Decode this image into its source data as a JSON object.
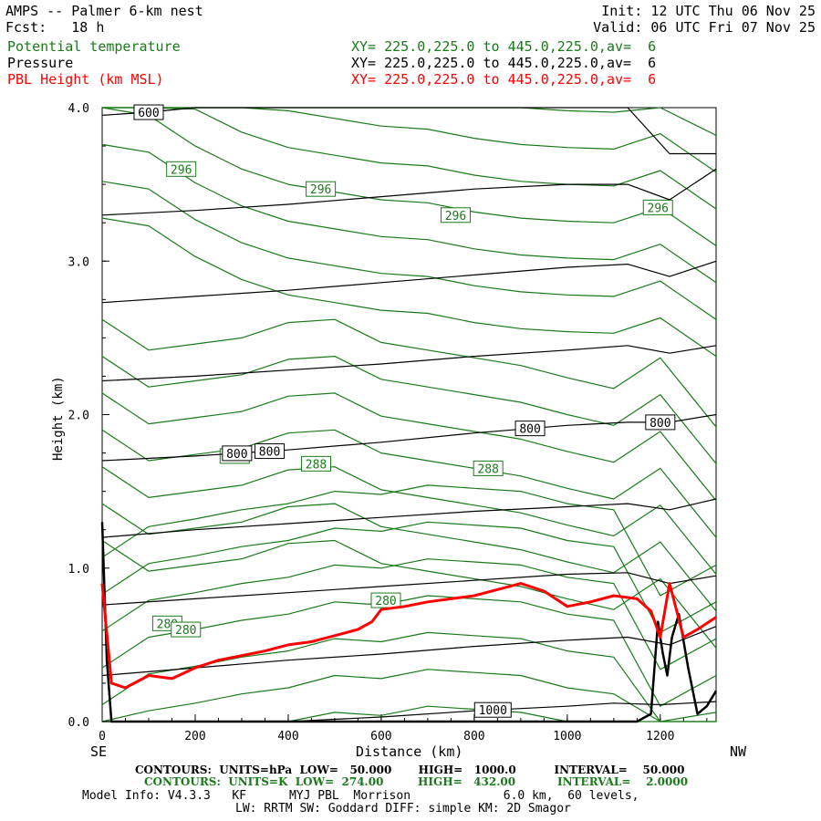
{
  "header": {
    "title": "AMPS -- Palmer 6-km nest",
    "fcst": "Fcst:   18 h",
    "init": "Init: 12 UTC Thu 06 Nov 25",
    "valid": "Valid: 06 UTC Fri 07 Nov 25",
    "fields": [
      {
        "name": "Potential temperature",
        "xy": "XY= 225.0,225.0 to 445.0,225.0,av=  6",
        "color": "#1a7a1a"
      },
      {
        "name": "Pressure",
        "xy": "XY= 225.0,225.0 to 445.0,225.0,av=  6",
        "color": "#000000"
      },
      {
        "name": "PBL Height (km MSL)",
        "xy": "XY= 225.0,225.0 to 445.0,225.0,av=  6",
        "color": "#ff0000"
      }
    ]
  },
  "chart_data": {
    "type": "line",
    "xlabel": "Distance (km)",
    "ylabel": "Height (km)",
    "xlim": [
      0,
      1320
    ],
    "ylim": [
      0,
      4
    ],
    "xticks": [
      "0",
      "200",
      "400",
      "600",
      "800",
      "1000",
      "1200"
    ],
    "yticks": [
      "0.0",
      "1.0",
      "2.0",
      "3.0",
      "4.0"
    ],
    "x_end_labels": {
      "left": "SE",
      "right": "NW"
    },
    "pressure_contours_hPa": [
      {
        "level": 1000,
        "x": [
          0,
          200,
          400,
          600,
          800,
          1000,
          1100,
          1200,
          1320
        ],
        "y": [
          -0.05,
          -0.03,
          0.0,
          0.03,
          0.07,
          0.1,
          0.12,
          0.11,
          0.13
        ],
        "labels": [
          "1000"
        ]
      },
      {
        "level": 950,
        "x": [
          0,
          200,
          400,
          600,
          800,
          1000,
          1130,
          1220,
          1320
        ],
        "y": [
          0.3,
          0.35,
          0.4,
          0.44,
          0.49,
          0.53,
          0.55,
          0.5,
          0.62
        ]
      },
      {
        "level": 900,
        "x": [
          0,
          200,
          400,
          600,
          800,
          1000,
          1130,
          1220,
          1320
        ],
        "y": [
          0.76,
          0.8,
          0.84,
          0.88,
          0.92,
          0.96,
          0.97,
          0.9,
          0.95
        ]
      },
      {
        "level": 850,
        "x": [
          0,
          200,
          400,
          600,
          800,
          1000,
          1130,
          1220,
          1320
        ],
        "y": [
          1.2,
          1.25,
          1.29,
          1.33,
          1.37,
          1.4,
          1.42,
          1.38,
          1.45
        ]
      },
      {
        "level": 800,
        "x": [
          0,
          200,
          400,
          600,
          800,
          1000,
          1130,
          1220,
          1320
        ],
        "y": [
          1.7,
          1.73,
          1.77,
          1.82,
          1.88,
          1.93,
          1.95,
          1.95,
          2.0
        ],
        "labels": [
          "800",
          "800",
          "800",
          "800"
        ]
      },
      {
        "level": 750,
        "x": [
          0,
          200,
          400,
          600,
          800,
          1000,
          1130,
          1220,
          1320
        ],
        "y": [
          2.22,
          2.25,
          2.29,
          2.33,
          2.38,
          2.42,
          2.45,
          2.4,
          2.45
        ]
      },
      {
        "level": 700,
        "x": [
          0,
          200,
          400,
          600,
          800,
          1000,
          1130,
          1220,
          1320
        ],
        "y": [
          2.73,
          2.77,
          2.81,
          2.86,
          2.91,
          2.96,
          2.98,
          2.9,
          3.0
        ]
      },
      {
        "level": 650,
        "x": [
          0,
          200,
          400,
          600,
          800,
          1000,
          1130,
          1220,
          1320
        ],
        "y": [
          3.3,
          3.33,
          3.37,
          3.42,
          3.47,
          3.5,
          3.5,
          3.4,
          3.6
        ]
      },
      {
        "level": 600,
        "x": [
          0,
          100,
          200,
          400,
          600,
          800,
          1000,
          1130,
          1220,
          1320
        ],
        "y": [
          3.95,
          3.97,
          4.0,
          4.02,
          4.04,
          4.05,
          4.05,
          4.0,
          3.7,
          3.7
        ],
        "labels": [
          "600"
        ]
      }
    ],
    "theta_contours_K": [
      {
        "level": 280,
        "x": [
          0,
          100,
          200,
          300,
          400,
          500,
          600,
          700,
          800,
          900,
          1000,
          1100,
          1200,
          1320
        ],
        "y": [
          0.35,
          0.55,
          0.6,
          0.66,
          0.7,
          0.78,
          0.76,
          0.82,
          0.8,
          0.78,
          0.7,
          0.66,
          0.1,
          0.3
        ],
        "labels": [
          "280",
          "280",
          "280"
        ]
      },
      {
        "level": 288,
        "x": [
          0,
          100,
          200,
          300,
          400,
          500,
          600,
          700,
          800,
          900,
          1000,
          1100,
          1200,
          1320
        ],
        "y": [
          1.9,
          1.7,
          1.74,
          1.78,
          1.88,
          1.9,
          1.75,
          1.7,
          1.65,
          1.6,
          1.52,
          1.45,
          1.65,
          1.2
        ],
        "labels": [
          "288",
          "288",
          "288"
        ]
      },
      {
        "level": 296,
        "x": [
          0,
          100,
          200,
          300,
          400,
          500,
          600,
          700,
          800,
          900,
          1000,
          1100,
          1200,
          1320
        ],
        "y": [
          4.0,
          3.95,
          3.75,
          3.6,
          3.5,
          3.45,
          3.4,
          3.38,
          3.32,
          3.28,
          3.26,
          3.25,
          3.35,
          3.1
        ],
        "labels": [
          "296",
          "296",
          "296",
          "296"
        ]
      }
    ],
    "pbl_height_km_msl": {
      "x": [
        0,
        20,
        50,
        100,
        150,
        200,
        250,
        300,
        350,
        400,
        450,
        500,
        550,
        580,
        600,
        650,
        700,
        750,
        800,
        850,
        900,
        950,
        1000,
        1050,
        1100,
        1150,
        1180,
        1200,
        1220,
        1250,
        1280,
        1320
      ],
      "y": [
        0.9,
        0.25,
        0.22,
        0.3,
        0.28,
        0.35,
        0.4,
        0.43,
        0.46,
        0.5,
        0.52,
        0.56,
        0.6,
        0.65,
        0.73,
        0.75,
        0.78,
        0.8,
        0.82,
        0.86,
        0.9,
        0.85,
        0.75,
        0.78,
        0.82,
        0.8,
        0.72,
        0.55,
        0.9,
        0.55,
        0.6,
        0.68
      ],
      "color": "#ff0000"
    },
    "terrain_km": {
      "x": [
        0,
        10,
        20,
        50,
        100,
        200,
        400,
        600,
        800,
        1000,
        1100,
        1150,
        1180,
        1195,
        1205,
        1215,
        1225,
        1240,
        1260,
        1280,
        1300,
        1320
      ],
      "y": [
        1.3,
        0.4,
        0.0,
        0.0,
        0.0,
        0.0,
        0.0,
        0.0,
        0.0,
        0.0,
        0.0,
        0.0,
        0.05,
        0.65,
        0.45,
        0.3,
        0.55,
        0.7,
        0.35,
        0.05,
        0.1,
        0.2
      ]
    }
  },
  "footer": {
    "contours_pressure": "CONTOURS:  UNITS=hPa  LOW=   50.000       HIGH=   1000.0          INTERVAL=    50.000",
    "contours_theta": "CONTOURS:  UNITS=K  LOW=  274.00         HIGH=   432.00           INTERVAL=    2.0000",
    "model_info": "Model Info: V4.3.3   KF      MYJ PBL  Morrison             6.0 km,  60 levels,",
    "model_info2": "LW: RRTM SW: Goddard DIFF: simple KM: 2D Smagor"
  }
}
